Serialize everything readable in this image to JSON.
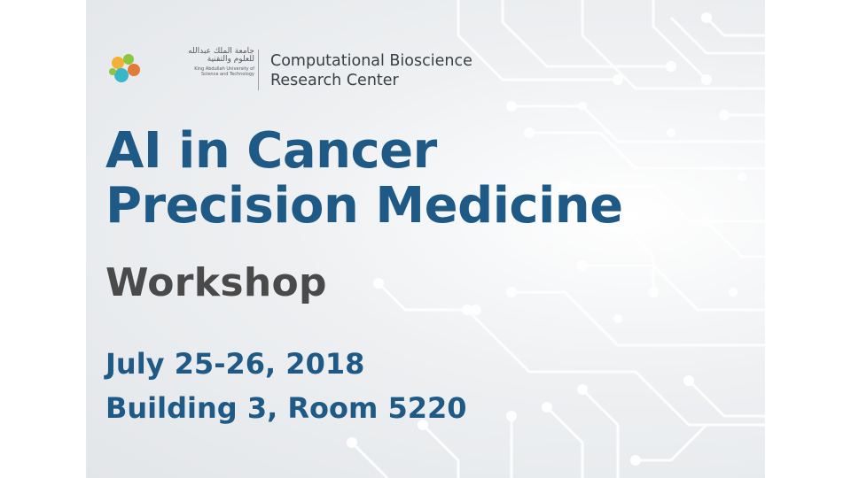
{
  "logo": {
    "arabic_line1": "جامعة الملك عبدالله",
    "arabic_line2": "للعلوم والتقنية",
    "english_line1": "King Abdullah University of",
    "english_line2": "Science and Technology",
    "colors": [
      "#f2b134",
      "#8cc63f",
      "#3ab6c9",
      "#e07b39"
    ]
  },
  "center": {
    "line1": "Computational Bioscience",
    "line2": "Research Center"
  },
  "title": {
    "line1": "AI in Cancer",
    "line2": "Precision Medicine"
  },
  "subtitle": "Workshop",
  "details": {
    "date": "July 25-26, 2018",
    "location": "Building 3, Room 5220"
  },
  "colors": {
    "title": "#1f5a86",
    "subtitle": "#4a4a4a",
    "circuit": "#ffffff"
  }
}
